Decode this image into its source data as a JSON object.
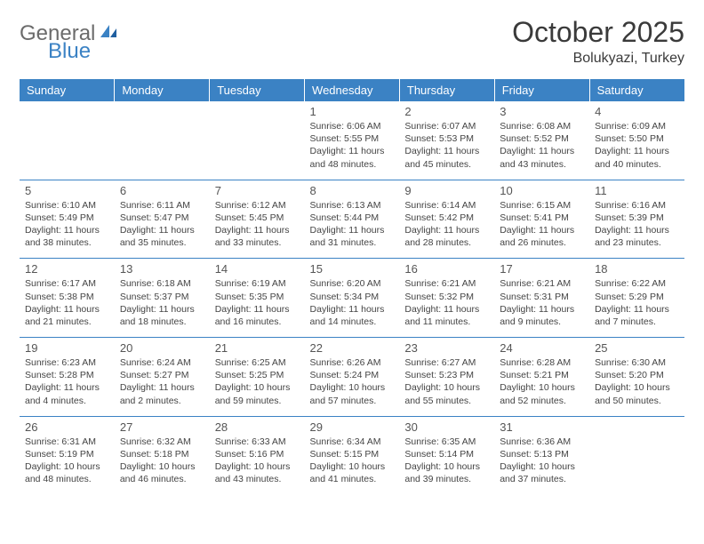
{
  "brand": {
    "part1": "General",
    "part2": "Blue"
  },
  "title": "October 2025",
  "location": "Bolukyazi, Turkey",
  "colors": {
    "header_bg": "#3b82c4",
    "header_text": "#ffffff",
    "divider": "#3b82c4",
    "body_text": "#444444",
    "daynum_text": "#555555",
    "logo_gray": "#6b6b6b",
    "logo_blue": "#3b82c4",
    "background": "#ffffff"
  },
  "typography": {
    "title_fontsize": 32,
    "location_fontsize": 16,
    "header_fontsize": 13,
    "daynum_fontsize": 13,
    "info_fontsize": 10.5
  },
  "weekdays": [
    "Sunday",
    "Monday",
    "Tuesday",
    "Wednesday",
    "Thursday",
    "Friday",
    "Saturday"
  ],
  "weeks": [
    [
      null,
      null,
      null,
      {
        "n": "1",
        "sr": "6:06 AM",
        "ss": "5:55 PM",
        "dl": "11 hours and 48 minutes."
      },
      {
        "n": "2",
        "sr": "6:07 AM",
        "ss": "5:53 PM",
        "dl": "11 hours and 45 minutes."
      },
      {
        "n": "3",
        "sr": "6:08 AM",
        "ss": "5:52 PM",
        "dl": "11 hours and 43 minutes."
      },
      {
        "n": "4",
        "sr": "6:09 AM",
        "ss": "5:50 PM",
        "dl": "11 hours and 40 minutes."
      }
    ],
    [
      {
        "n": "5",
        "sr": "6:10 AM",
        "ss": "5:49 PM",
        "dl": "11 hours and 38 minutes."
      },
      {
        "n": "6",
        "sr": "6:11 AM",
        "ss": "5:47 PM",
        "dl": "11 hours and 35 minutes."
      },
      {
        "n": "7",
        "sr": "6:12 AM",
        "ss": "5:45 PM",
        "dl": "11 hours and 33 minutes."
      },
      {
        "n": "8",
        "sr": "6:13 AM",
        "ss": "5:44 PM",
        "dl": "11 hours and 31 minutes."
      },
      {
        "n": "9",
        "sr": "6:14 AM",
        "ss": "5:42 PM",
        "dl": "11 hours and 28 minutes."
      },
      {
        "n": "10",
        "sr": "6:15 AM",
        "ss": "5:41 PM",
        "dl": "11 hours and 26 minutes."
      },
      {
        "n": "11",
        "sr": "6:16 AM",
        "ss": "5:39 PM",
        "dl": "11 hours and 23 minutes."
      }
    ],
    [
      {
        "n": "12",
        "sr": "6:17 AM",
        "ss": "5:38 PM",
        "dl": "11 hours and 21 minutes."
      },
      {
        "n": "13",
        "sr": "6:18 AM",
        "ss": "5:37 PM",
        "dl": "11 hours and 18 minutes."
      },
      {
        "n": "14",
        "sr": "6:19 AM",
        "ss": "5:35 PM",
        "dl": "11 hours and 16 minutes."
      },
      {
        "n": "15",
        "sr": "6:20 AM",
        "ss": "5:34 PM",
        "dl": "11 hours and 14 minutes."
      },
      {
        "n": "16",
        "sr": "6:21 AM",
        "ss": "5:32 PM",
        "dl": "11 hours and 11 minutes."
      },
      {
        "n": "17",
        "sr": "6:21 AM",
        "ss": "5:31 PM",
        "dl": "11 hours and 9 minutes."
      },
      {
        "n": "18",
        "sr": "6:22 AM",
        "ss": "5:29 PM",
        "dl": "11 hours and 7 minutes."
      }
    ],
    [
      {
        "n": "19",
        "sr": "6:23 AM",
        "ss": "5:28 PM",
        "dl": "11 hours and 4 minutes."
      },
      {
        "n": "20",
        "sr": "6:24 AM",
        "ss": "5:27 PM",
        "dl": "11 hours and 2 minutes."
      },
      {
        "n": "21",
        "sr": "6:25 AM",
        "ss": "5:25 PM",
        "dl": "10 hours and 59 minutes."
      },
      {
        "n": "22",
        "sr": "6:26 AM",
        "ss": "5:24 PM",
        "dl": "10 hours and 57 minutes."
      },
      {
        "n": "23",
        "sr": "6:27 AM",
        "ss": "5:23 PM",
        "dl": "10 hours and 55 minutes."
      },
      {
        "n": "24",
        "sr": "6:28 AM",
        "ss": "5:21 PM",
        "dl": "10 hours and 52 minutes."
      },
      {
        "n": "25",
        "sr": "6:30 AM",
        "ss": "5:20 PM",
        "dl": "10 hours and 50 minutes."
      }
    ],
    [
      {
        "n": "26",
        "sr": "6:31 AM",
        "ss": "5:19 PM",
        "dl": "10 hours and 48 minutes."
      },
      {
        "n": "27",
        "sr": "6:32 AM",
        "ss": "5:18 PM",
        "dl": "10 hours and 46 minutes."
      },
      {
        "n": "28",
        "sr": "6:33 AM",
        "ss": "5:16 PM",
        "dl": "10 hours and 43 minutes."
      },
      {
        "n": "29",
        "sr": "6:34 AM",
        "ss": "5:15 PM",
        "dl": "10 hours and 41 minutes."
      },
      {
        "n": "30",
        "sr": "6:35 AM",
        "ss": "5:14 PM",
        "dl": "10 hours and 39 minutes."
      },
      {
        "n": "31",
        "sr": "6:36 AM",
        "ss": "5:13 PM",
        "dl": "10 hours and 37 minutes."
      },
      null
    ]
  ],
  "labels": {
    "sunrise": "Sunrise:",
    "sunset": "Sunset:",
    "daylight": "Daylight:"
  }
}
